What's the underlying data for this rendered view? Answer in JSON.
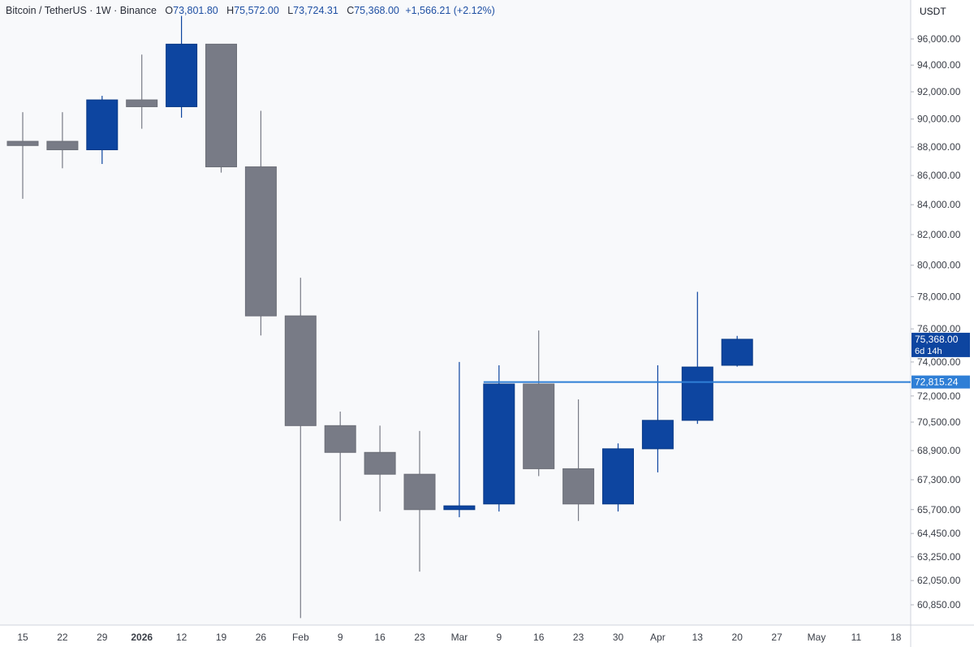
{
  "header": {
    "symbol": "Bitcoin / TetherUS · 1W · Binance",
    "open_label": "O",
    "open": "73,801.80",
    "high_label": "H",
    "high": "75,572.00",
    "low_label": "L",
    "low": "73,724.31",
    "close_label": "C",
    "close": "75,368.00",
    "change": "+1,566.21 (+2.12%)"
  },
  "currency": "USDT",
  "colors": {
    "up": "#0d45a0",
    "down": "#787b86",
    "line": "#2f7fd6",
    "plot_bg": "#f8f9fb"
  },
  "chart_data": {
    "type": "candlestick",
    "interval": "1W",
    "y_axis": {
      "scale": "log",
      "range": [
        60000,
        98500
      ],
      "ticks": [
        "96,000.00",
        "94,000.00",
        "92,000.00",
        "90,000.00",
        "88,000.00",
        "86,000.00",
        "84,000.00",
        "82,000.00",
        "80,000.00",
        "78,000.00",
        "76,000.00",
        "74,000.00",
        "72,000.00",
        "70,500.00",
        "68,900.00",
        "67,300.00",
        "65,700.00",
        "64,450.00",
        "63,250.00",
        "62,050.00",
        "60,850.00"
      ],
      "tick_values": [
        96000,
        94000,
        92000,
        90000,
        88000,
        86000,
        84000,
        82000,
        80000,
        78000,
        76000,
        74000,
        72000,
        70500,
        68900,
        67300,
        65700,
        64450,
        63250,
        62050,
        60850
      ]
    },
    "x_axis": {
      "tick_labels": [
        "15",
        "22",
        "29",
        "2026",
        "12",
        "19",
        "26",
        "Feb",
        "9",
        "16",
        "23",
        "Mar",
        "9",
        "16",
        "23",
        "30",
        "Apr",
        "13",
        "20",
        "27",
        "May",
        "11",
        "18"
      ],
      "bold_labels": [
        "2026"
      ]
    },
    "candles": [
      {
        "date": "2025-12-15",
        "open": 88400,
        "high": 90500,
        "low": 84400,
        "close": 88100
      },
      {
        "date": "2025-12-22",
        "open": 88400,
        "high": 90500,
        "low": 86500,
        "close": 87800
      },
      {
        "date": "2025-12-29",
        "open": 87800,
        "high": 91700,
        "low": 86800,
        "close": 91400
      },
      {
        "date": "2026-01-05",
        "open": 91400,
        "high": 94800,
        "low": 89300,
        "close": 90900
      },
      {
        "date": "2026-01-12",
        "open": 90900,
        "high": 97800,
        "low": 90100,
        "close": 95600
      },
      {
        "date": "2026-01-19",
        "open": 95600,
        "high": 95600,
        "low": 86200,
        "close": 86600
      },
      {
        "date": "2026-01-26",
        "open": 86600,
        "high": 90600,
        "low": 75600,
        "close": 76800
      },
      {
        "date": "2026-02-02",
        "open": 76800,
        "high": 79200,
        "low": 60200,
        "close": 70300
      },
      {
        "date": "2026-02-09",
        "open": 70300,
        "high": 71100,
        "low": 65100,
        "close": 68800
      },
      {
        "date": "2026-02-16",
        "open": 68800,
        "high": 70300,
        "low": 65600,
        "close": 67600
      },
      {
        "date": "2026-02-23",
        "open": 67600,
        "high": 70000,
        "low": 62500,
        "close": 65700
      },
      {
        "date": "2026-03-02",
        "open": 65700,
        "high": 74000,
        "low": 65300,
        "close": 65900
      },
      {
        "date": "2026-03-09",
        "open": 66000,
        "high": 73800,
        "low": 65600,
        "close": 72700
      },
      {
        "date": "2026-03-16",
        "open": 72700,
        "high": 75900,
        "low": 67500,
        "close": 67900
      },
      {
        "date": "2026-03-23",
        "open": 67900,
        "high": 71800,
        "low": 65100,
        "close": 66000
      },
      {
        "date": "2026-03-30",
        "open": 66000,
        "high": 69300,
        "low": 65600,
        "close": 69000
      },
      {
        "date": "2026-04-06",
        "open": 69000,
        "high": 73800,
        "low": 67700,
        "close": 70600
      },
      {
        "date": "2026-04-13",
        "open": 70600,
        "high": 78300,
        "low": 70400,
        "close": 73700
      },
      {
        "date": "2026-04-20",
        "open": 73801.8,
        "high": 75572,
        "low": 73724.31,
        "close": 75368
      }
    ],
    "horizontal_line": {
      "value": 72815.24,
      "label": "72,815.24"
    },
    "last_price": {
      "value": 75368.0,
      "label": "75,368.00",
      "countdown": "6d 14h"
    }
  }
}
